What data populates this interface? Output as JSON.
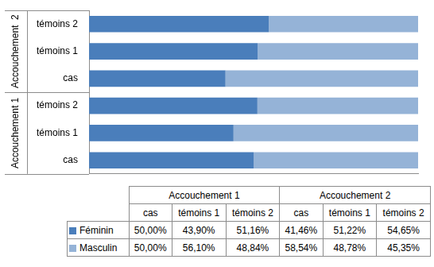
{
  "chart_data": {
    "type": "bar",
    "orientation": "horizontal",
    "stacked": true,
    "grid": false,
    "tick_labels": "y",
    "categories": [
      "cas",
      "témoins 1",
      "témoins 2",
      "cas",
      "témoins 1",
      "témoins 2"
    ],
    "category_groups": [
      "Accouchement 1",
      "Accouchement 1",
      "Accouchement 1",
      "Accouchement  2",
      "Accouchement  2",
      "Accouchement  2"
    ],
    "xlim": [
      0,
      100
    ],
    "series": [
      {
        "name": "Féminin",
        "color": "#4a7ebb",
        "values": [
          50.0,
          43.9,
          51.16,
          41.46,
          51.22,
          54.65
        ],
        "value_labels": [
          "50,00%",
          "43,90%",
          "51,16%",
          "41,46%",
          "51,22%",
          "54,65%"
        ]
      },
      {
        "name": "Masculin",
        "color": "#95b3d7",
        "values": [
          50.0,
          56.1,
          48.84,
          58.54,
          48.78,
          45.35
        ],
        "value_labels": [
          "50,00%",
          "56,10%",
          "48,84%",
          "58,54%",
          "48,78%",
          "45,35%"
        ]
      }
    ]
  }
}
